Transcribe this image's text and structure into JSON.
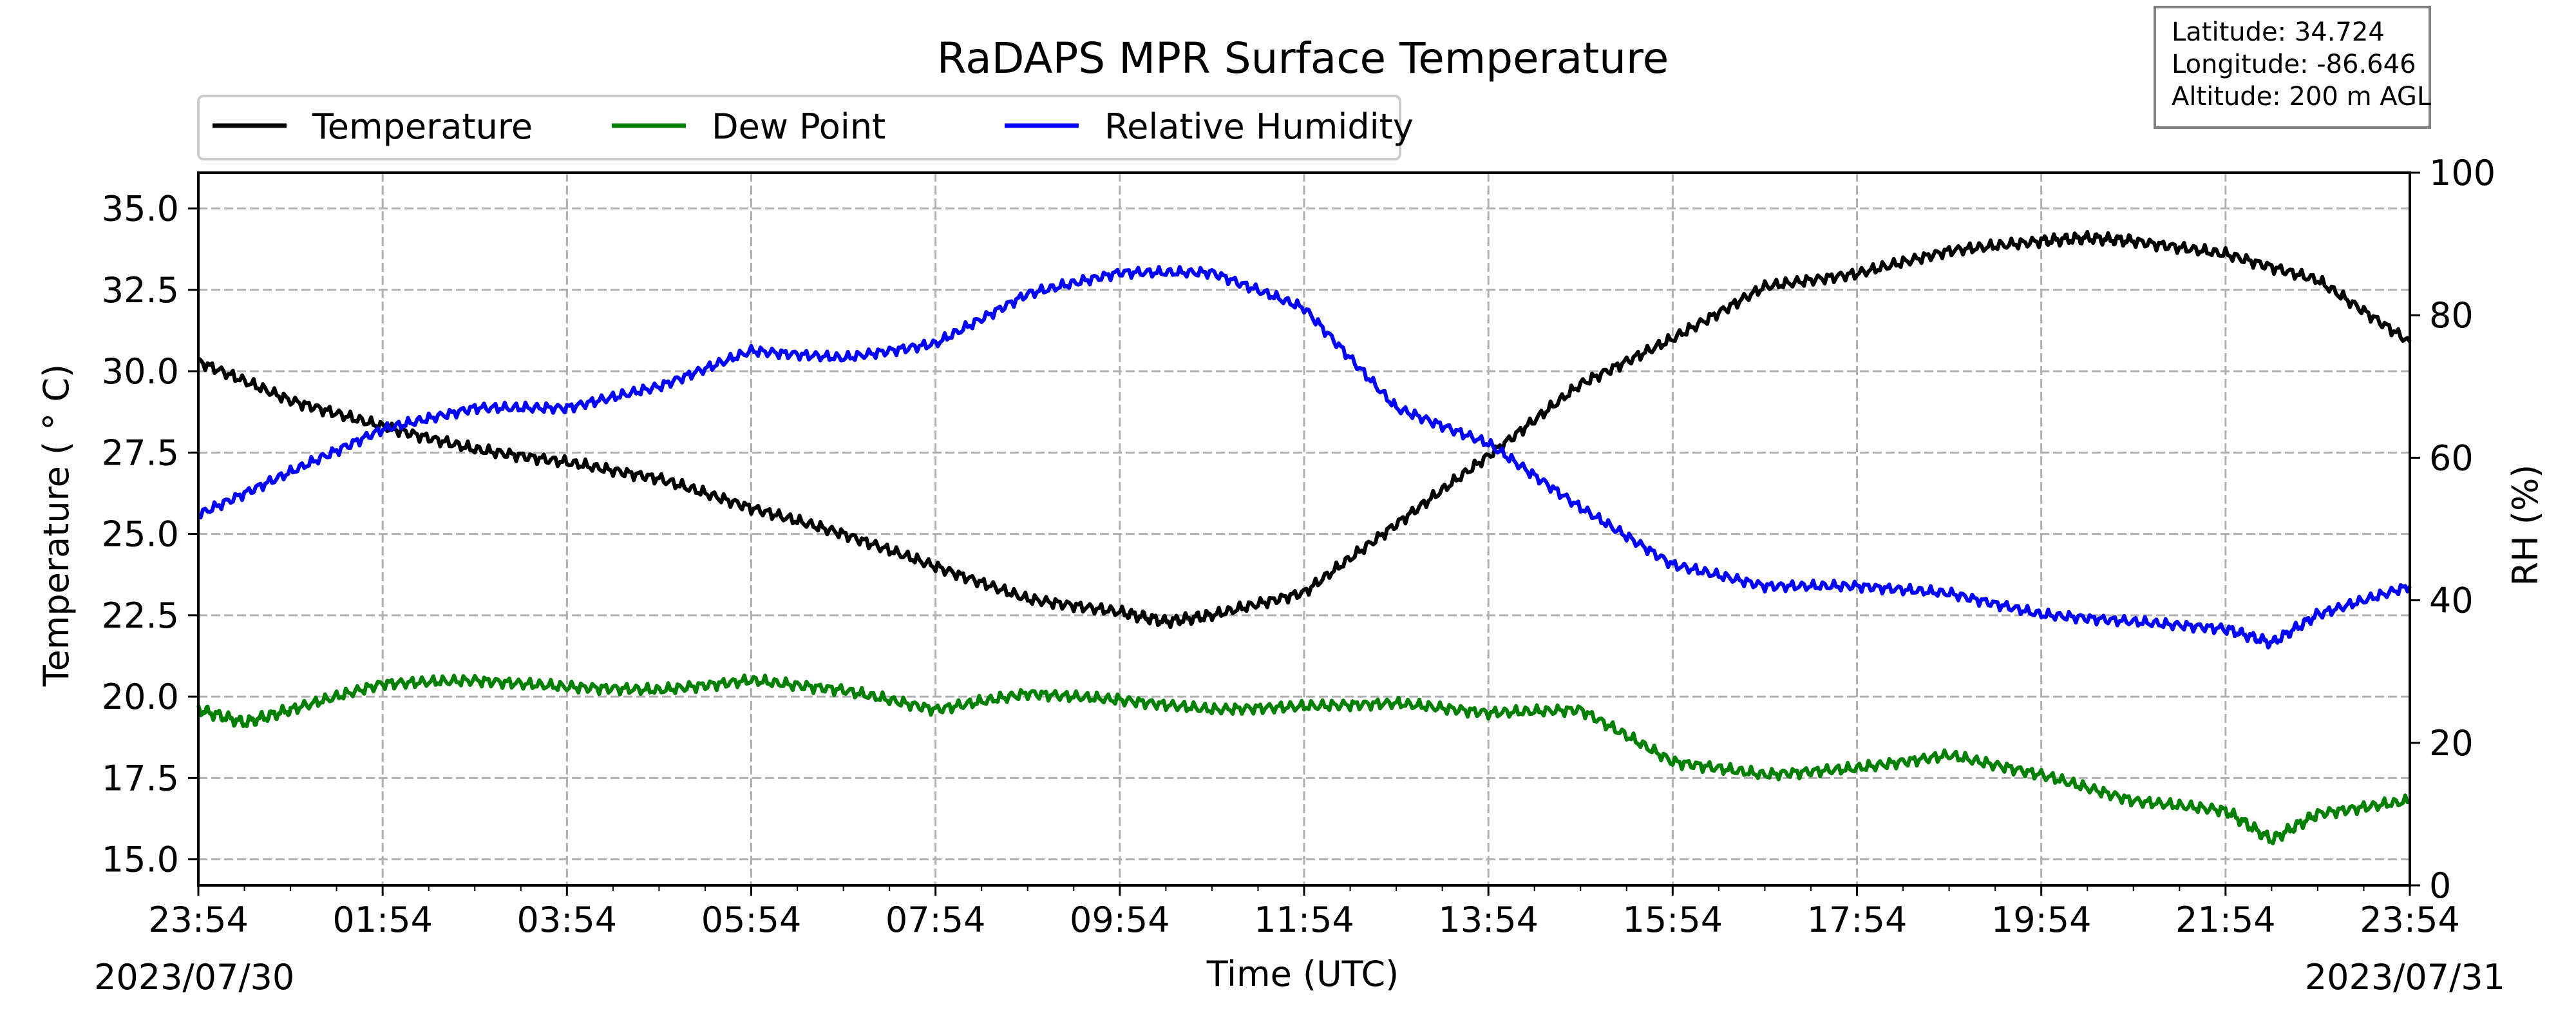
{
  "chart_data": {
    "type": "line",
    "title": "RaDAPS MPR Surface Temperature",
    "xlabel": "Time (UTC)",
    "ylabel_left": "Temperature ($^\\circ$C)",
    "ylabel_left_display": "Temperature ( ° C)",
    "ylabel_right": "RH (%)",
    "x_ticks": [
      "23:54",
      "01:54",
      "03:54",
      "05:54",
      "07:54",
      "09:54",
      "11:54",
      "13:54",
      "15:54",
      "17:54",
      "19:54",
      "21:54",
      "23:54"
    ],
    "date_start": "2023/07/30",
    "date_end": "2023/07/31",
    "xlim": [
      "2023/07/30 23:54",
      "2023/07/31 23:54"
    ],
    "ylim_left": [
      14.2,
      36.1
    ],
    "yticks_left": [
      "15.0",
      "17.5",
      "20.0",
      "22.5",
      "25.0",
      "27.5",
      "30.0",
      "32.5",
      "35.0"
    ],
    "ylim_right": [
      0,
      100
    ],
    "yticks_right": [
      "0",
      "20",
      "40",
      "60",
      "80",
      "100"
    ],
    "grid": true,
    "legend_position": "top-left",
    "info_box": {
      "latitude": "Latitude: 34.724",
      "longitude": "Longitude: -86.646",
      "altitude": "Altitude: 200 m AGL"
    },
    "series": [
      {
        "name": "Temperature",
        "axis": "left",
        "color": "#000000",
        "x": [
          "2023/07/30 23:54",
          "2023/07/31 00:54",
          "2023/07/31 01:54",
          "2023/07/31 02:54",
          "2023/07/31 03:54",
          "2023/07/31 04:54",
          "2023/07/31 05:54",
          "2023/07/31 06:54",
          "2023/07/31 07:54",
          "2023/07/31 08:54",
          "2023/07/31 09:54",
          "2023/07/31 10:24",
          "2023/07/31 10:54",
          "2023/07/31 11:54",
          "2023/07/31 12:54",
          "2023/07/31 13:54",
          "2023/07/31 14:54",
          "2023/07/31 15:54",
          "2023/07/31 16:54",
          "2023/07/31 17:54",
          "2023/07/31 18:54",
          "2023/07/31 19:54",
          "2023/07/31 20:24",
          "2023/07/31 20:54",
          "2023/07/31 21:54",
          "2023/07/31 22:54",
          "2023/07/31 23:54"
        ],
        "y": [
          30.3,
          29.1,
          28.3,
          27.6,
          27.2,
          26.7,
          25.8,
          25.0,
          24.0,
          23.0,
          22.6,
          22.3,
          22.5,
          23.2,
          25.3,
          27.4,
          29.6,
          31.0,
          32.6,
          33.0,
          33.7,
          34.0,
          34.1,
          34.0,
          33.6,
          32.8,
          30.9
        ]
      },
      {
        "name": "Dew Point",
        "axis": "left",
        "color": "#008000",
        "x": [
          "2023/07/30 23:54",
          "2023/07/31 00:24",
          "2023/07/31 00:54",
          "2023/07/31 01:54",
          "2023/07/31 02:54",
          "2023/07/31 03:54",
          "2023/07/31 04:54",
          "2023/07/31 05:54",
          "2023/07/31 06:54",
          "2023/07/31 07:54",
          "2023/07/31 08:54",
          "2023/07/31 09:54",
          "2023/07/31 10:54",
          "2023/07/31 11:54",
          "2023/07/31 12:54",
          "2023/07/31 13:54",
          "2023/07/31 14:54",
          "2023/07/31 15:54",
          "2023/07/31 16:54",
          "2023/07/31 17:54",
          "2023/07/31 18:54",
          "2023/07/31 19:54",
          "2023/07/31 20:54",
          "2023/07/31 21:54",
          "2023/07/31 22:24",
          "2023/07/31 22:54",
          "2023/07/31 23:54"
        ],
        "y": [
          19.6,
          19.2,
          19.6,
          20.4,
          20.5,
          20.3,
          20.2,
          20.5,
          20.2,
          19.6,
          20.1,
          19.9,
          19.6,
          19.7,
          19.8,
          19.5,
          19.6,
          18.0,
          17.6,
          17.8,
          18.2,
          17.6,
          16.8,
          16.5,
          15.6,
          16.4,
          16.8
        ]
      },
      {
        "name": "Relative Humidity",
        "axis": "right",
        "color": "#0000ff",
        "x": [
          "2023/07/30 23:54",
          "2023/07/31 00:54",
          "2023/07/31 01:54",
          "2023/07/31 02:54",
          "2023/07/31 03:54",
          "2023/07/31 04:54",
          "2023/07/31 05:54",
          "2023/07/31 06:54",
          "2023/07/31 07:54",
          "2023/07/31 08:54",
          "2023/07/31 09:54",
          "2023/07/31 10:54",
          "2023/07/31 11:54",
          "2023/07/31 12:54",
          "2023/07/31 13:54",
          "2023/07/31 14:54",
          "2023/07/31 15:54",
          "2023/07/31 16:54",
          "2023/07/31 17:54",
          "2023/07/31 18:54",
          "2023/07/31 19:54",
          "2023/07/31 20:54",
          "2023/07/31 21:54",
          "2023/07/31 22:24",
          "2023/07/31 22:54",
          "2023/07/31 23:54"
        ],
        "y": [
          52,
          58,
          64,
          67,
          67,
          70,
          75,
          74,
          76,
          83,
          86,
          86,
          81,
          67,
          62,
          53,
          45,
          42,
          42,
          41,
          38,
          37,
          36,
          34,
          38,
          42
        ]
      }
    ]
  }
}
